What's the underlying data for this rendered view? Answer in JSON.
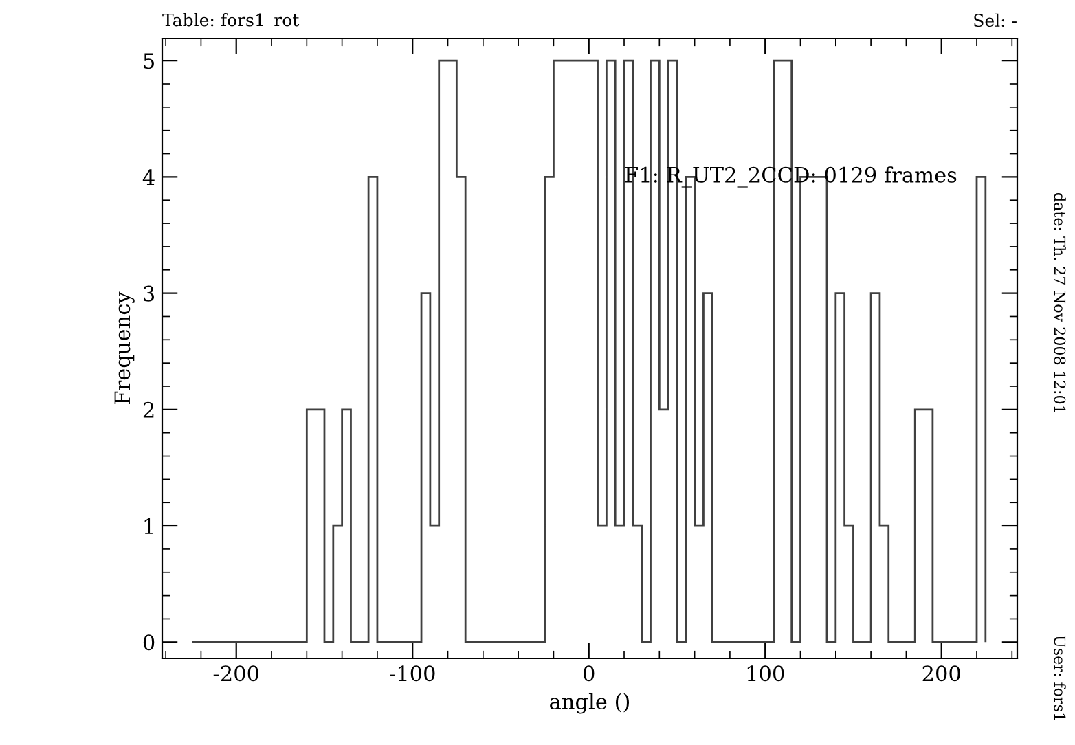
{
  "chart_data": {
    "type": "histogram",
    "xlabel": "angle ()",
    "ylabel": "Frequency",
    "bins": [
      -225,
      -220,
      -215,
      -210,
      -205,
      -200,
      -195,
      -190,
      -185,
      -180,
      -175,
      -170,
      -165,
      -160,
      -155,
      -150,
      -145,
      -140,
      -135,
      -130,
      -125,
      -120,
      -115,
      -110,
      -105,
      -100,
      -95,
      -90,
      -85,
      -80,
      -75,
      -70,
      -65,
      -60,
      -55,
      -50,
      -45,
      -40,
      -35,
      -30,
      -25,
      -20,
      -15,
      -10,
      -5,
      0,
      5,
      10,
      15,
      20,
      25,
      30,
      35,
      40,
      45,
      50,
      55,
      60,
      65,
      70,
      75,
      80,
      85,
      90,
      95,
      100,
      105,
      110,
      115,
      120,
      125,
      130,
      135,
      140,
      145,
      150,
      155,
      160,
      165,
      170,
      175,
      180,
      185,
      190,
      195,
      200,
      205,
      210,
      215,
      220,
      225
    ],
    "values": [
      0,
      0,
      0,
      0,
      0,
      0,
      0,
      0,
      0,
      0,
      0,
      0,
      0,
      2,
      2,
      0,
      1,
      2,
      0,
      0,
      4,
      0,
      0,
      0,
      0,
      0,
      3,
      1,
      5,
      5,
      4,
      0,
      0,
      0,
      0,
      0,
      0,
      0,
      0,
      0,
      4,
      5,
      5,
      5,
      5,
      5,
      1,
      5,
      1,
      5,
      1,
      0,
      5,
      2,
      5,
      0,
      4,
      1,
      3,
      0,
      0,
      0,
      0,
      0,
      0,
      0,
      5,
      5,
      0,
      4,
      4,
      4,
      0,
      3,
      1,
      0,
      0,
      3,
      1,
      0,
      0,
      0,
      2,
      2,
      0,
      0,
      0,
      0,
      0,
      4
    ],
    "color": "#404040",
    "xlim": [
      -242,
      243
    ],
    "xticks": [
      -200,
      -100,
      0,
      100,
      200
    ],
    "ylim": [
      -0.14,
      5.19
    ],
    "yticks": [
      0,
      1,
      2,
      3,
      4,
      5
    ],
    "grid": false,
    "annotations": [
      {
        "text": "F1: R_UT2_2CCD: 0129 frames",
        "x": 20,
        "y": 4
      },
      "Table: fors1_rot",
      "Sel: -",
      "date: Th. 27 Nov 2008 12:01",
      "User: fors1"
    ]
  }
}
